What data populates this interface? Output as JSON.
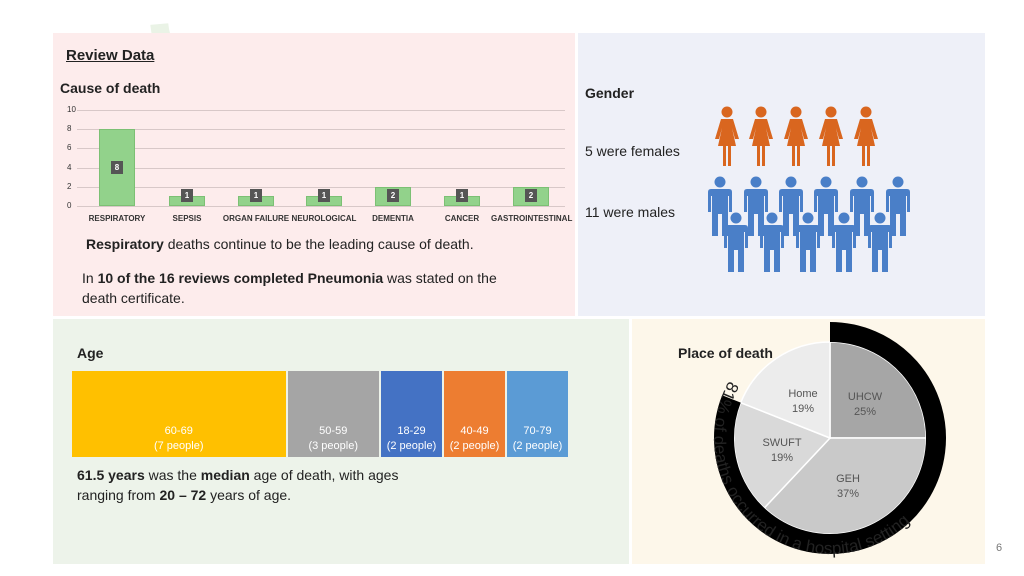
{
  "review": {
    "title": "Review Data",
    "cause_title": "Cause of death",
    "resp_bold": "Respiratory",
    "resp_rest": " deaths continue to be the leading cause of death.",
    "pneu_pre": "In ",
    "pneu_bold": "10 of the 16 reviews completed Pneumonia",
    "pneu_post": " was stated on the",
    "pneu_line2": "death certificate."
  },
  "chart_data": {
    "type": "bar",
    "categories": [
      "RESPIRATORY",
      "SEPSIS",
      "ORGAN FAILURE",
      "NEUROLOGICAL",
      "DEMENTIA",
      "CANCER",
      "GASTROINTESTINAL"
    ],
    "values": [
      8,
      1,
      1,
      1,
      2,
      1,
      2
    ],
    "y_ticks": [
      "0",
      "2",
      "4",
      "6",
      "8",
      "10"
    ],
    "ylim": [
      0,
      10
    ],
    "grid": true,
    "bar_color": "#92d28b"
  },
  "gender": {
    "title": "Gender",
    "females_text": "5 were females",
    "males_text": "11 were males",
    "female_color": "#d9661f",
    "male_color": "#4a7fc8"
  },
  "age": {
    "title": "Age",
    "groups": [
      {
        "range": "60-69",
        "count": "(7 people)",
        "people": 7,
        "color": "#ffc000"
      },
      {
        "range": "50-59",
        "count": "(3 people)",
        "people": 3,
        "color": "#a5a5a5"
      },
      {
        "range": "18-29",
        "count": "(2 people)",
        "people": 2,
        "color": "#4472c4"
      },
      {
        "range": "40-49",
        "count": "(2 people)",
        "people": 2,
        "color": "#ed7d31"
      },
      {
        "range": "70-79",
        "count": "(2 people)",
        "people": 2,
        "color": "#5b9bd5"
      }
    ],
    "median_bold": "61.5 years",
    "median_mid": " was the ",
    "median_word": "median",
    "median_rest": " age of death, with ages",
    "range_pre": "ranging from ",
    "range_bold": "20 – 72",
    "range_post": " years of age."
  },
  "place": {
    "title": "Place of death",
    "slices": [
      {
        "name": "UHCW",
        "pct": "25%",
        "value": 25,
        "color": "#a6a6a6"
      },
      {
        "name": "GEH",
        "pct": "37%",
        "value": 37,
        "color": "#c9c9c9"
      },
      {
        "name": "SWUFT",
        "pct": "19%",
        "value": 19,
        "color": "#d9d9d9"
      },
      {
        "name": "Home",
        "pct": "19%",
        "value": 19,
        "color": "#ececec"
      }
    ],
    "arc_text": "81% of deaths occurred in a hospital setting",
    "hospital_share": 81
  },
  "page_number": "6"
}
